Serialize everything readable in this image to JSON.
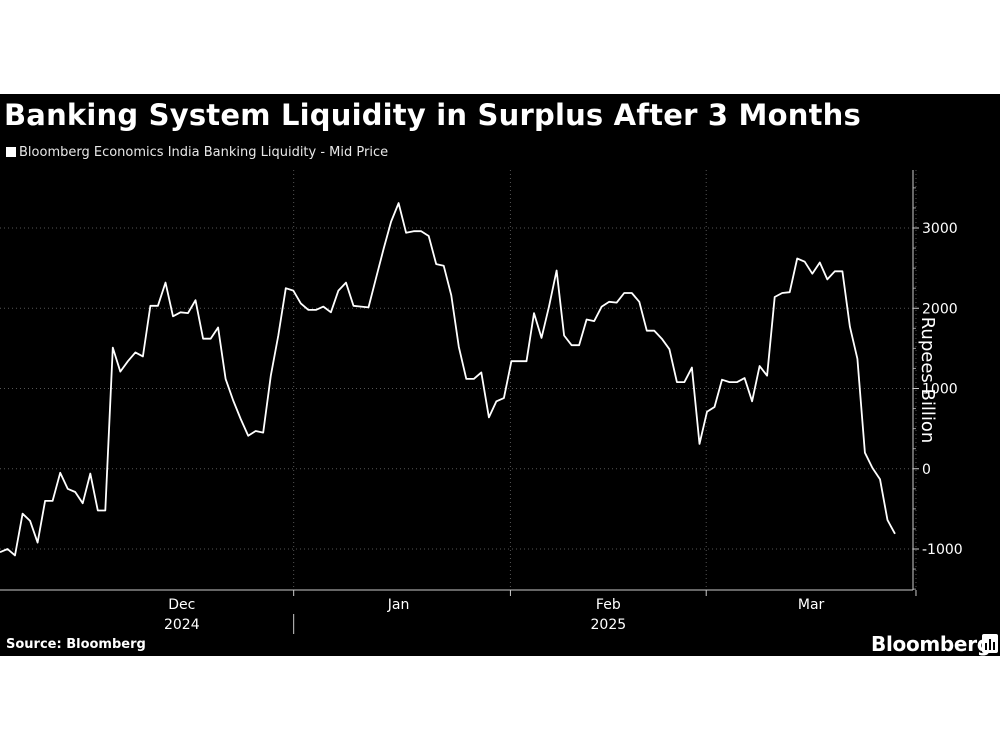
{
  "title": "Banking System Liquidity in Surplus After 3 Months",
  "legend": "Bloomberg Economics India Banking Liquidity - Mid Price",
  "source": "Source: Bloomberg",
  "brand": "Bloomberg",
  "colors": {
    "background": "#000000",
    "line": "#ffffff",
    "grid": "#555555",
    "text": "#ffffff"
  },
  "chart_data": {
    "type": "line",
    "title": "Banking System Liquidity in Surplus After 3 Months",
    "ylabel": "Rupees Billion",
    "xlabel": "",
    "ylim": [
      -1500,
      3700
    ],
    "yticks": [
      3000,
      2000,
      1000,
      0,
      -1000
    ],
    "ytick_labels": [
      "3000",
      "2000",
      "1000",
      "0",
      "-1000"
    ],
    "x_period": {
      "start": "2024-11-20",
      "end": "2025-03-28",
      "frequency": "daily"
    },
    "month_labels": [
      {
        "label": "Dec",
        "date": "2024-12-16"
      },
      {
        "label": "Jan",
        "date": "2025-01-16"
      },
      {
        "label": "Feb",
        "date": "2025-02-15"
      },
      {
        "label": "Mar",
        "date": "2025-03-16"
      }
    ],
    "month_separators": [
      "2025-01-01",
      "2025-02-01",
      "2025-03-01",
      "2025-03-31"
    ],
    "year_labels": [
      {
        "label": "2024",
        "date": "2024-12-16"
      },
      {
        "label": "2025",
        "date": "2025-02-15"
      }
    ],
    "year_separator": "2025-01-01",
    "legend_placement": "top-left",
    "grid": "dotted vertical lines at month boundaries, horizontal gridlines at y ticks",
    "series": [
      {
        "name": "Bloomberg Economics India Banking Liquidity - Mid Price",
        "values": [
          -1040,
          -1000,
          -1080,
          -560,
          -650,
          -920,
          -400,
          -400,
          -50,
          -250,
          -290,
          -430,
          -60,
          -520,
          -520,
          1510,
          1210,
          1340,
          1450,
          1400,
          2030,
          2030,
          2320,
          1900,
          1950,
          1940,
          2100,
          1620,
          1620,
          1760,
          1120,
          850,
          620,
          410,
          470,
          450,
          1160,
          1660,
          2250,
          2220,
          2060,
          1980,
          1980,
          2020,
          1950,
          2220,
          2320,
          2030,
          2020,
          2010,
          2380,
          2740,
          3080,
          3310,
          2940,
          2960,
          2960,
          2900,
          2550,
          2530,
          2160,
          1520,
          1120,
          1120,
          1200,
          640,
          840,
          880,
          1340,
          1340,
          1340,
          1940,
          1630,
          2020,
          2470,
          1660,
          1540,
          1540,
          1860,
          1840,
          2020,
          2080,
          2070,
          2190,
          2190,
          2080,
          1720,
          1720,
          1620,
          1490,
          1080,
          1080,
          1260,
          310,
          710,
          770,
          1110,
          1080,
          1080,
          1130,
          840,
          1280,
          1160,
          2140,
          2190,
          2200,
          2620,
          2580,
          2430,
          2570,
          2360,
          2460,
          2460,
          1770,
          1370,
          200,
          10,
          -130,
          -640,
          -810
        ]
      }
    ]
  }
}
